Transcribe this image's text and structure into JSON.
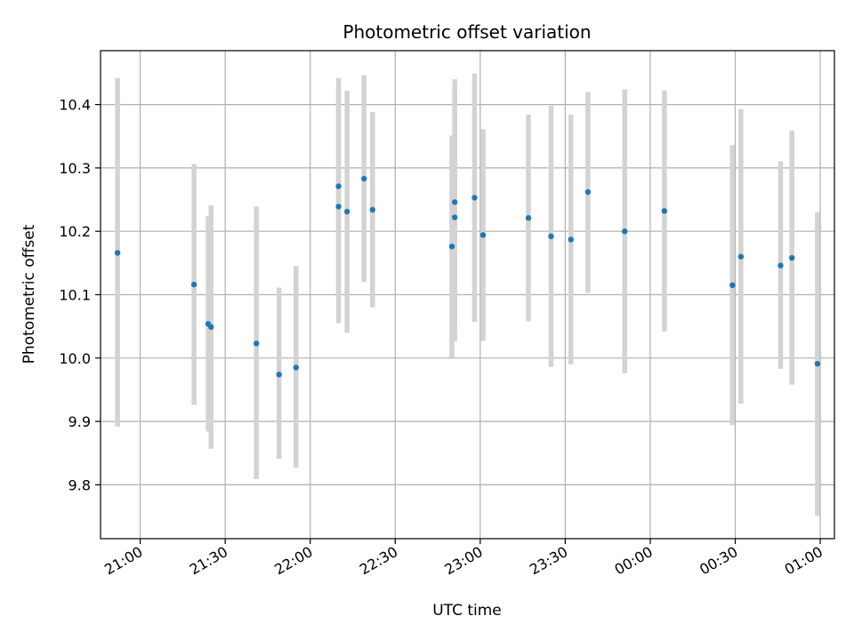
{
  "chart_data": {
    "type": "scatter",
    "title": "Photometric offset variation",
    "xlabel": "UTC time",
    "ylabel": "Photometric offset",
    "xlim": [
      "20:46",
      "01:05"
    ],
    "ylim": [
      9.715,
      10.485
    ],
    "grid": true,
    "x_ticks": [
      "21:00",
      "21:30",
      "22:00",
      "22:30",
      "23:00",
      "23:30",
      "00:00",
      "00:30",
      "01:00"
    ],
    "y_ticks": [
      9.8,
      9.9,
      10.0,
      10.1,
      10.2,
      10.3,
      10.4
    ],
    "y_tick_labels": [
      "9.8",
      "9.9",
      "10.0",
      "10.1",
      "10.2",
      "10.3",
      "10.4"
    ],
    "colors": {
      "marker": "#1f77b4",
      "errorbar": "#d3d3d3"
    },
    "series": [
      {
        "points": [
          {
            "x": "20:52",
            "y": 10.166,
            "y_low": 9.892,
            "y_high": 10.442
          },
          {
            "x": "21:19",
            "y": 10.116,
            "y_low": 9.926,
            "y_high": 10.306
          },
          {
            "x": "21:24",
            "y": 10.054,
            "y_low": 9.884,
            "y_high": 10.224
          },
          {
            "x": "21:25",
            "y": 10.049,
            "y_low": 9.857,
            "y_high": 10.241
          },
          {
            "x": "21:41",
            "y": 10.023,
            "y_low": 9.809,
            "y_high": 10.239
          },
          {
            "x": "21:49",
            "y": 9.974,
            "y_low": 9.841,
            "y_high": 10.111
          },
          {
            "x": "21:55",
            "y": 9.985,
            "y_low": 9.827,
            "y_high": 10.145
          },
          {
            "x": "22:10",
            "y": 10.271,
            "y_low": 10.1,
            "y_high": 10.442
          },
          {
            "x": "22:10",
            "y": 10.239,
            "y_low": 10.055,
            "y_high": 10.423
          },
          {
            "x": "22:13",
            "y": 10.231,
            "y_low": 10.04,
            "y_high": 10.422
          },
          {
            "x": "22:19",
            "y": 10.283,
            "y_low": 10.12,
            "y_high": 10.446
          },
          {
            "x": "22:22",
            "y": 10.234,
            "y_low": 10.08,
            "y_high": 10.388
          },
          {
            "x": "22:50",
            "y": 10.176,
            "y_low": 10.001,
            "y_high": 10.351
          },
          {
            "x": "22:51",
            "y": 10.222,
            "y_low": 10.027,
            "y_high": 10.417
          },
          {
            "x": "22:51",
            "y": 10.246,
            "y_low": 10.052,
            "y_high": 10.44
          },
          {
            "x": "22:58",
            "y": 10.253,
            "y_low": 10.057,
            "y_high": 10.449
          },
          {
            "x": "23:01",
            "y": 10.194,
            "y_low": 10.027,
            "y_high": 10.361
          },
          {
            "x": "23:17",
            "y": 10.221,
            "y_low": 10.058,
            "y_high": 10.384
          },
          {
            "x": "23:25",
            "y": 10.192,
            "y_low": 9.986,
            "y_high": 10.398
          },
          {
            "x": "23:32",
            "y": 10.187,
            "y_low": 9.99,
            "y_high": 10.384
          },
          {
            "x": "23:38",
            "y": 10.262,
            "y_low": 10.103,
            "y_high": 10.42
          },
          {
            "x": "23:51",
            "y": 10.2,
            "y_low": 9.976,
            "y_high": 10.424
          },
          {
            "x": "00:05",
            "y": 10.232,
            "y_low": 10.042,
            "y_high": 10.422
          },
          {
            "x": "00:29",
            "y": 10.115,
            "y_low": 9.894,
            "y_high": 10.336
          },
          {
            "x": "00:32",
            "y": 10.16,
            "y_low": 9.928,
            "y_high": 10.393
          },
          {
            "x": "00:46",
            "y": 10.146,
            "y_low": 9.983,
            "y_high": 10.31
          },
          {
            "x": "00:50",
            "y": 10.158,
            "y_low": 9.958,
            "y_high": 10.359
          },
          {
            "x": "00:59",
            "y": 9.991,
            "y_low": 9.751,
            "y_high": 10.23
          }
        ]
      }
    ]
  }
}
